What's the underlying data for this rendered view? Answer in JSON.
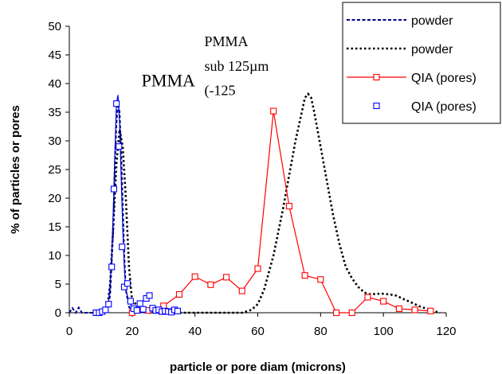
{
  "chart_data": {
    "type": "line",
    "title": "",
    "xlabel": "particle or pore diam (microns)",
    "ylabel": "% of particles or pores",
    "xlim": [
      0,
      120
    ],
    "ylim": [
      0,
      50
    ],
    "xticks": [
      0,
      20,
      40,
      60,
      80,
      100,
      120
    ],
    "yticks": [
      0,
      5,
      10,
      15,
      20,
      25,
      30,
      35,
      40,
      45,
      50
    ],
    "grid": false,
    "legend_position": "top-right",
    "annotations": [
      {
        "text": "PMMA",
        "x": 23,
        "y": 39.5,
        "size": "large"
      },
      {
        "text": "PMMA",
        "x": 43,
        "y": 46.5,
        "size": "medium"
      },
      {
        "text": "sub 125µm",
        "x": 43,
        "y": 42.2,
        "size": "medium"
      },
      {
        "text": "(-125",
        "x": 43,
        "y": 38.0,
        "size": "medium"
      }
    ],
    "series": [
      {
        "name": "powder",
        "style": "dashed",
        "color": "#00008b",
        "marker": "none",
        "x": [
          0,
          1,
          2,
          3,
          4,
          5,
          6,
          7,
          8,
          9,
          10,
          11,
          12,
          13,
          14,
          14.5,
          15,
          15.5,
          16,
          16.5,
          17,
          17.5,
          18,
          19,
          20,
          25,
          30,
          35
        ],
        "y": [
          0,
          0.8,
          0,
          0.9,
          0,
          0,
          0,
          0,
          0,
          0,
          0.3,
          0.6,
          0.3,
          3,
          15,
          26,
          33,
          36.5,
          35,
          28,
          19,
          10,
          4,
          1,
          0.3,
          0,
          0,
          0
        ]
      },
      {
        "name": "powder",
        "style": "dotted",
        "color": "#000000",
        "marker": "none",
        "x": [
          10,
          12,
          13,
          14,
          15,
          16,
          17,
          18,
          19,
          20,
          25,
          30,
          40,
          50,
          55,
          58,
          60,
          62,
          65,
          68,
          70,
          72,
          74,
          75,
          76,
          77,
          78,
          80,
          82,
          84,
          86,
          88,
          90,
          92,
          94,
          96,
          98,
          100,
          102,
          104,
          106,
          108,
          110,
          112,
          114,
          116,
          118
        ],
        "y": [
          0,
          0.5,
          5,
          15,
          26,
          32,
          29,
          20,
          8,
          2,
          0,
          0,
          0,
          0,
          0,
          0.5,
          1.5,
          4,
          10,
          18,
          24,
          30,
          35,
          37.5,
          38.2,
          37.5,
          35,
          29,
          23,
          17,
          12,
          8,
          6,
          4.5,
          3.5,
          3.2,
          3.3,
          3.3,
          3.2,
          3,
          2.5,
          2,
          1.5,
          1,
          0.7,
          0.3,
          0
        ]
      },
      {
        "name": "QIA (pores)",
        "style": "solid",
        "color": "#ff0000",
        "marker": "square-open",
        "x": [
          20,
          25,
          30,
          35,
          40,
          45,
          50,
          55,
          60,
          65,
          70,
          75,
          80,
          85,
          90,
          95,
          100,
          105,
          110,
          115
        ],
        "y": [
          0,
          0.4,
          1.2,
          3.2,
          6.3,
          4.9,
          6.2,
          3.8,
          7.7,
          35.2,
          18.6,
          6.5,
          5.8,
          0,
          0,
          2.7,
          2,
          0.7,
          0.5,
          0.3
        ]
      },
      {
        "name": "QIA (pores)",
        "style": "marker-only",
        "color": "#0000ff",
        "marker": "square-open",
        "x": [
          8.5,
          9.5,
          10.5,
          11.5,
          12.5,
          13.5,
          14.2,
          15,
          15.8,
          16.8,
          17.5,
          18.5,
          19.5,
          20.5,
          21.5,
          22.5,
          23.5,
          24.5,
          25.5,
          26.5,
          27.5,
          28.5,
          29.5,
          30.5,
          31.5,
          32.5,
          33.5,
          34.5
        ],
        "y": [
          0,
          0,
          0.2,
          0.5,
          1.5,
          8,
          21.6,
          36.5,
          29,
          11.5,
          4.5,
          5.1,
          2,
          0.7,
          0.4,
          1.6,
          0.6,
          2.5,
          3,
          0.8,
          0.4,
          0.5,
          0.2,
          0.3,
          0.2,
          0.1,
          0.5,
          0.3
        ]
      }
    ],
    "blue_smoothed_line": {
      "color": "#0000ff",
      "style": "solid",
      "x": [
        8,
        9,
        10,
        11,
        12,
        12.5,
        13,
        13.5,
        14,
        14.5,
        15,
        15.5,
        16,
        16.5,
        17,
        17.5,
        18,
        19,
        20,
        22,
        25,
        30,
        35
      ],
      "y": [
        0,
        0.1,
        0.3,
        0.5,
        1,
        2,
        5,
        10,
        18,
        28,
        36.5,
        38,
        33,
        24,
        15,
        8,
        4,
        2,
        1,
        0.5,
        0.3,
        0.2,
        0
      ]
    }
  }
}
